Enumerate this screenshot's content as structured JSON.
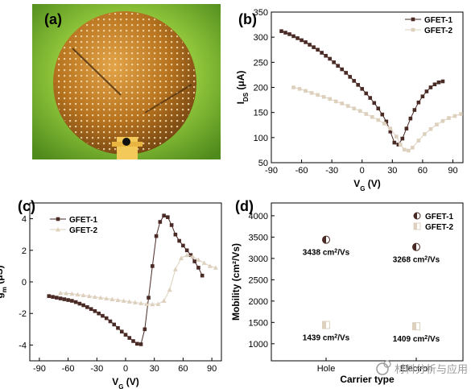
{
  "panels": {
    "a": "(a)",
    "b": "(b)",
    "c": "(c)",
    "d": "(d)"
  },
  "colors": {
    "gfet1": "#4a2a24",
    "gfet2": "#ddd0bd",
    "leaf_bg": "#8ec43a",
    "wafer": "#c8882c"
  },
  "watermark": "材料分析与应用",
  "chart_data": [
    {
      "panel": "b",
      "type": "line",
      "marker": "square",
      "xlabel": "V",
      "xlabel_sub": "G",
      "xlabel_unit": "(V)",
      "ylabel": "I",
      "ylabel_sub": "DS",
      "ylabel_unit": "(μA)",
      "xlim": [
        -90,
        100
      ],
      "ylim": [
        50,
        350
      ],
      "xticks": [
        -90,
        -60,
        -30,
        0,
        30,
        60,
        90
      ],
      "yticks": [
        50,
        100,
        150,
        200,
        250,
        300,
        350
      ],
      "legend": "top-right",
      "series": [
        {
          "name": "GFET-1",
          "x": [
            -80,
            -76,
            -72,
            -68,
            -64,
            -60,
            -56,
            -52,
            -48,
            -44,
            -40,
            -36,
            -32,
            -28,
            -24,
            -20,
            -16,
            -12,
            -8,
            -4,
            0,
            4,
            8,
            12,
            16,
            20,
            24,
            28,
            32,
            36,
            40,
            44,
            48,
            52,
            56,
            60,
            64,
            68,
            72,
            76,
            80
          ],
          "y": [
            312,
            309,
            306,
            302,
            298,
            294,
            290,
            285,
            280,
            275,
            269,
            263,
            257,
            250,
            243,
            236,
            229,
            221,
            213,
            205,
            197,
            188,
            179,
            169,
            158,
            146,
            132,
            112,
            90,
            86,
            98,
            118,
            138,
            155,
            170,
            182,
            192,
            200,
            206,
            210,
            212
          ]
        },
        {
          "name": "GFET-2",
          "x": [
            -68,
            -62,
            -56,
            -50,
            -44,
            -38,
            -32,
            -26,
            -20,
            -14,
            -8,
            -2,
            4,
            10,
            16,
            22,
            28,
            34,
            38,
            42,
            46,
            50,
            56,
            62,
            68,
            74,
            80,
            86,
            92,
            98
          ],
          "y": [
            200,
            197,
            193,
            189,
            185,
            181,
            177,
            172,
            168,
            163,
            158,
            153,
            147,
            141,
            135,
            128,
            118,
            102,
            86,
            76,
            74,
            80,
            94,
            107,
            117,
            126,
            133,
            139,
            143,
            147
          ]
        }
      ]
    },
    {
      "panel": "c",
      "type": "line",
      "marker": "square / triangle",
      "xlabel": "V",
      "xlabel_sub": "G",
      "xlabel_unit": "(V)",
      "ylabel": "g",
      "ylabel_sub": "m",
      "ylabel_unit": "(μS)",
      "xlim": [
        -100,
        100
      ],
      "ylim": [
        -5,
        5
      ],
      "xticks": [
        -90,
        -60,
        -30,
        0,
        30,
        60,
        90
      ],
      "yticks": [
        -4,
        -2,
        0,
        2,
        4
      ],
      "legend": "top-left",
      "series": [
        {
          "name": "GFET-1",
          "x": [
            -80,
            -76,
            -72,
            -68,
            -64,
            -60,
            -56,
            -52,
            -48,
            -44,
            -40,
            -36,
            -32,
            -28,
            -24,
            -20,
            -16,
            -12,
            -8,
            -4,
            0,
            4,
            8,
            12,
            16,
            20,
            24,
            28,
            32,
            36,
            40,
            44,
            48,
            52,
            56,
            60,
            64,
            68,
            72,
            76,
            80
          ],
          "y": [
            -0.9,
            -0.95,
            -1.0,
            -1.05,
            -1.1,
            -1.15,
            -1.2,
            -1.28,
            -1.38,
            -1.48,
            -1.6,
            -1.72,
            -1.85,
            -2.0,
            -2.15,
            -2.3,
            -2.5,
            -2.7,
            -2.92,
            -3.15,
            -3.35,
            -3.55,
            -3.75,
            -3.92,
            -3.95,
            -3.0,
            -1.0,
            1.0,
            2.9,
            3.8,
            4.2,
            4.1,
            3.6,
            3.0,
            2.6,
            2.3,
            2.0,
            1.7,
            1.3,
            0.9,
            0.4
          ]
        },
        {
          "name": "GFET-2",
          "x": [
            -68,
            -62,
            -56,
            -50,
            -44,
            -38,
            -32,
            -26,
            -20,
            -14,
            -8,
            -2,
            4,
            10,
            16,
            22,
            28,
            34,
            40,
            46,
            52,
            58,
            64,
            70,
            76,
            82,
            88,
            94
          ],
          "y": [
            -0.7,
            -0.72,
            -0.75,
            -0.8,
            -0.85,
            -0.9,
            -0.95,
            -1.0,
            -1.05,
            -1.1,
            -1.15,
            -1.2,
            -1.25,
            -1.3,
            -1.35,
            -1.4,
            -1.42,
            -1.4,
            -1.2,
            -0.5,
            0.8,
            1.5,
            1.7,
            1.6,
            1.4,
            1.2,
            1.0,
            0.9
          ]
        }
      ]
    },
    {
      "panel": "d",
      "type": "scatter",
      "xlabel": "Carrier type",
      "ylabel": "Mobility",
      "ylabel_unit": "(cm²/Vs)",
      "ylim": [
        600,
        4300
      ],
      "yticks": [
        1000,
        1500,
        2000,
        2500,
        3000,
        3500,
        4000
      ],
      "categories": [
        "Hole",
        "Electron"
      ],
      "legend": "top-right",
      "series": [
        {
          "name": "GFET-1",
          "values": [
            3438,
            3268
          ]
        },
        {
          "name": "GFET-2",
          "values": [
            1439,
            1409
          ]
        }
      ],
      "annotations": {
        "GFET-1": [
          "3438 cm²/Vs",
          "3268 cm²/Vs"
        ],
        "GFET-2": [
          "1439 cm²/Vs",
          "1409 cm²/Vs"
        ]
      }
    }
  ]
}
